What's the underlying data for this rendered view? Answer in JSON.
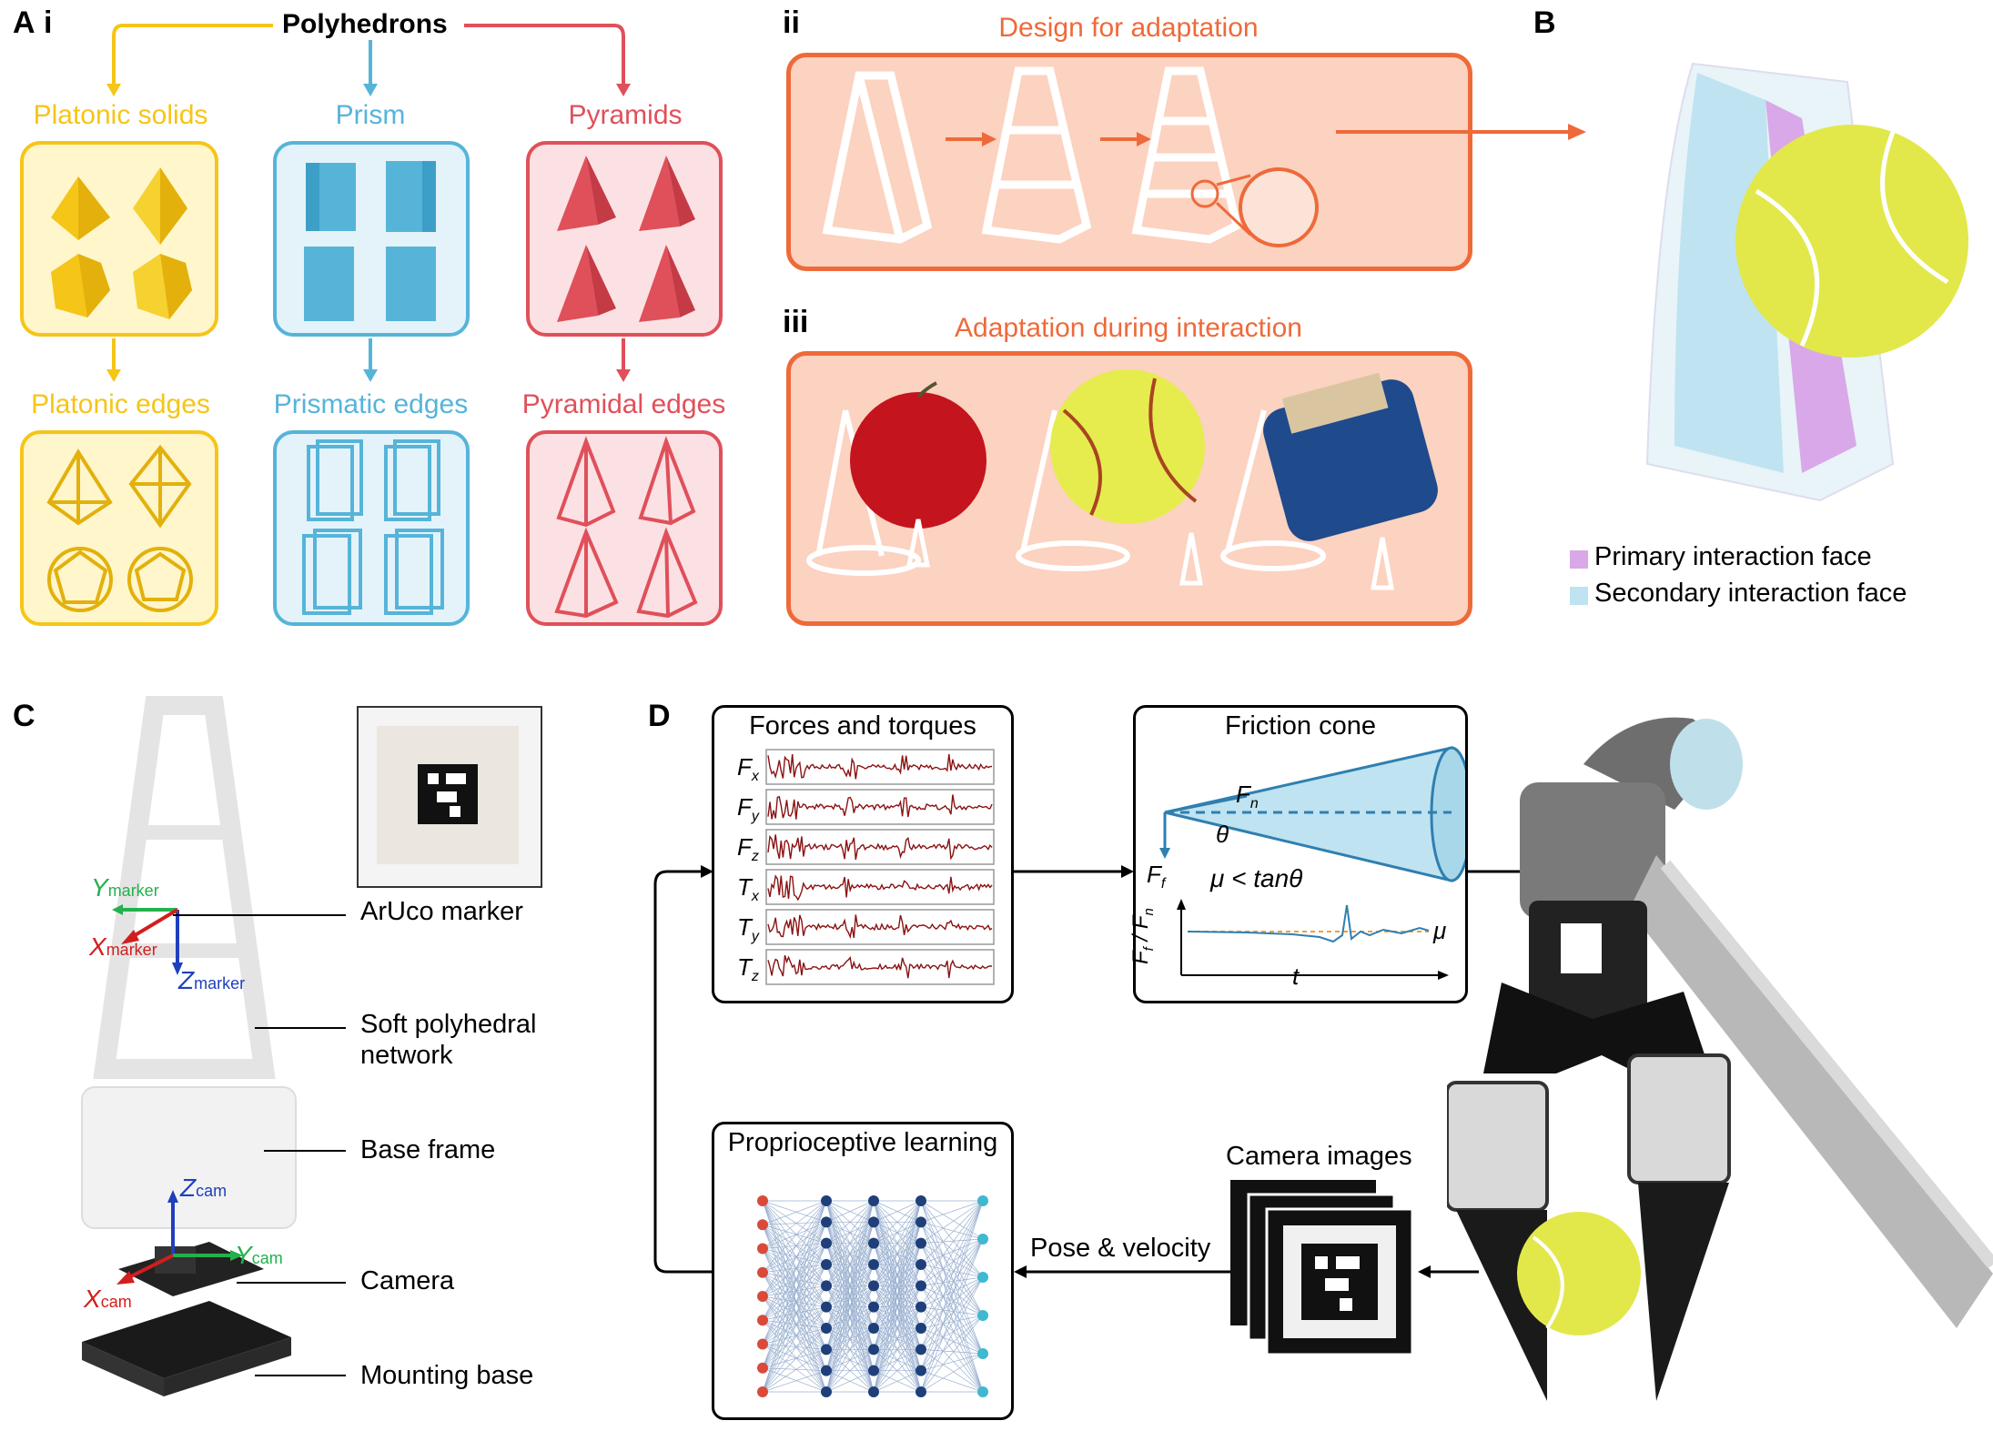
{
  "panel_labels": {
    "a": "A",
    "a_i": "i",
    "a_ii": "ii",
    "a_iii": "iii",
    "b": "B",
    "c": "C",
    "d": "D"
  },
  "panel_a": {
    "root": "Polyhedrons",
    "columns": [
      {
        "solid": "Platonic solids",
        "edges": "Platonic edges"
      },
      {
        "solid": "Prism",
        "edges": "Prismatic edges"
      },
      {
        "solid": "Pyramids",
        "edges": "Pyramidal edges"
      }
    ],
    "colors": {
      "platonic": "#f5c518",
      "prism": "#56b4d9",
      "pyramid": "#e0505a"
    }
  },
  "panel_a_ii": {
    "title": "Design for adaptation"
  },
  "panel_a_iii": {
    "title": "Adaptation during interaction"
  },
  "panel_b": {
    "legend": [
      {
        "label": "Primary interaction face",
        "color": "#d9a8e8"
      },
      {
        "label": "Secondary interaction face",
        "color": "#bfe3f0"
      }
    ]
  },
  "panel_c": {
    "labels": [
      "ArUco marker",
      "Soft polyhedral",
      "network",
      "Base frame",
      "Camera",
      "Mounting base"
    ],
    "axes": {
      "y_marker": "Y",
      "x_marker": "X",
      "z_marker": "Z",
      "sub_marker": "marker",
      "z_cam": "Z",
      "y_cam": "Y",
      "x_cam": "X",
      "sub_cam": "cam"
    }
  },
  "panel_d": {
    "forces_title": "Forces and torques",
    "signals": [
      "F",
      "F",
      "F",
      "T",
      "T",
      "T"
    ],
    "signal_subs": [
      "x",
      "y",
      "z",
      "x",
      "y",
      "z"
    ],
    "friction_title": "Friction cone",
    "friction": {
      "fn": "F",
      "fn_sub": "n",
      "theta": "θ",
      "ff": "F",
      "ff_sub": "f",
      "mu_ineq": "μ < tanθ",
      "ylabel": "F",
      "ylabel_sub1": "f",
      "ylabel_sep": " / F",
      "ylabel_sub2": "n",
      "xlabel": "t",
      "mu": "μ"
    },
    "learning_title": "Proprioceptive learning",
    "pose_label": "Pose & velocity",
    "camera_images_label": "Camera images"
  }
}
